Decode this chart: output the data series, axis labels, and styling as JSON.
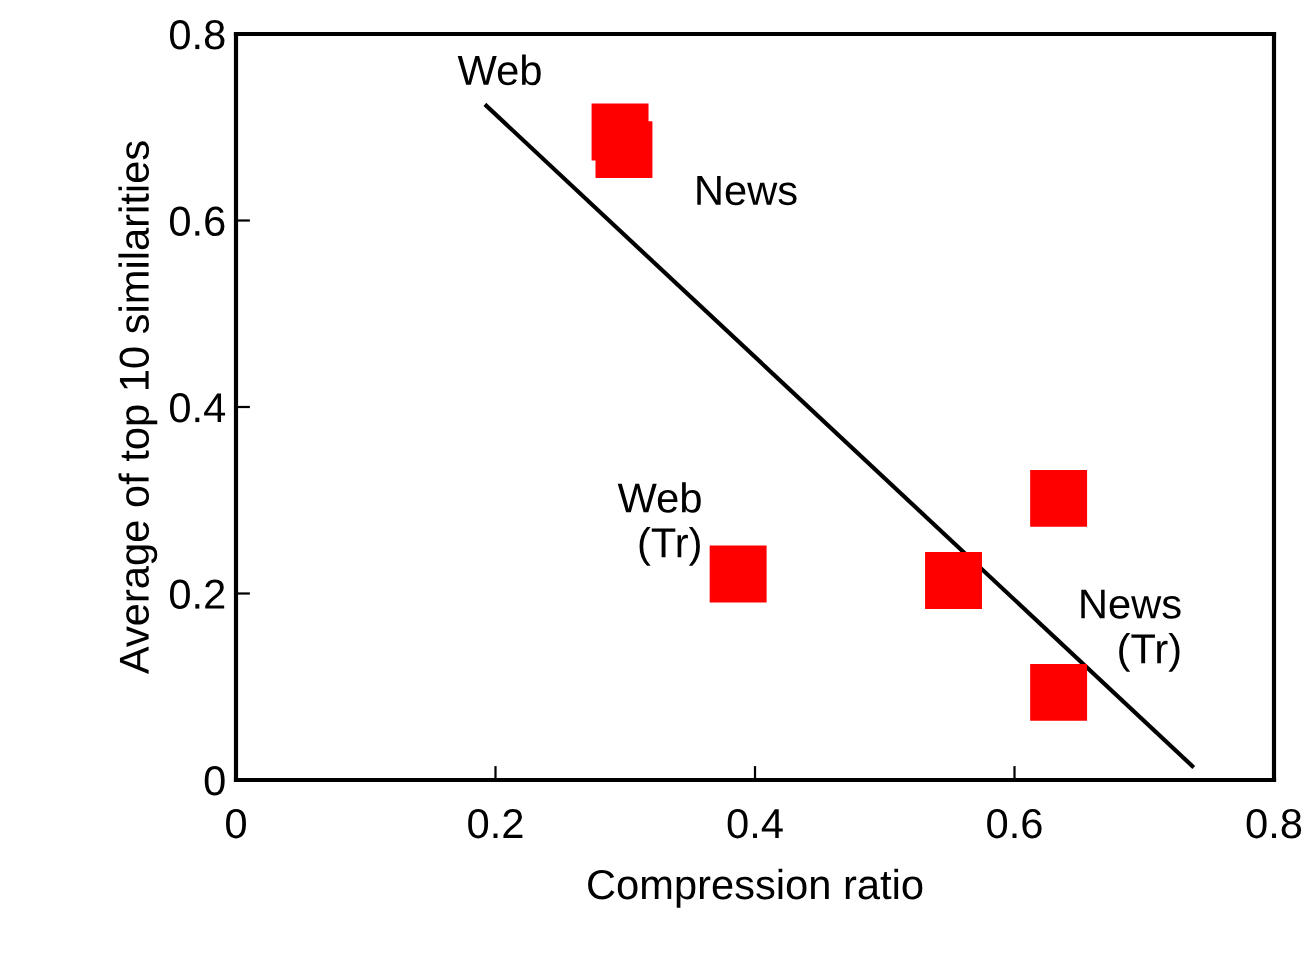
{
  "chart_data": {
    "type": "scatter",
    "xlabel": "Compression ratio",
    "ylabel": "Average of top 10 similarities",
    "xlim": [
      0,
      0.8
    ],
    "ylim": [
      0,
      0.8
    ],
    "xticks": [
      0,
      0.2,
      0.4,
      0.6,
      0.8
    ],
    "yticks": [
      0,
      0.2,
      0.4,
      0.6,
      0.8
    ],
    "grid": false,
    "legend": false,
    "series": [
      {
        "color": "#ff0000",
        "marker": "square",
        "x": [
          0.296,
          0.299,
          0.387,
          0.553,
          0.634,
          0.634
        ],
        "values": [
          0.695,
          0.676,
          0.221,
          0.214,
          0.302,
          0.094
        ]
      },
      {
        "type": "line",
        "color": "#000000",
        "x": [
          0.193,
          0.737
        ],
        "values": [
          0.723,
          0.015
        ]
      }
    ],
    "annotations": [
      "Web",
      "News",
      "Web\n(Tr)",
      "News\n(Tr)"
    ]
  }
}
